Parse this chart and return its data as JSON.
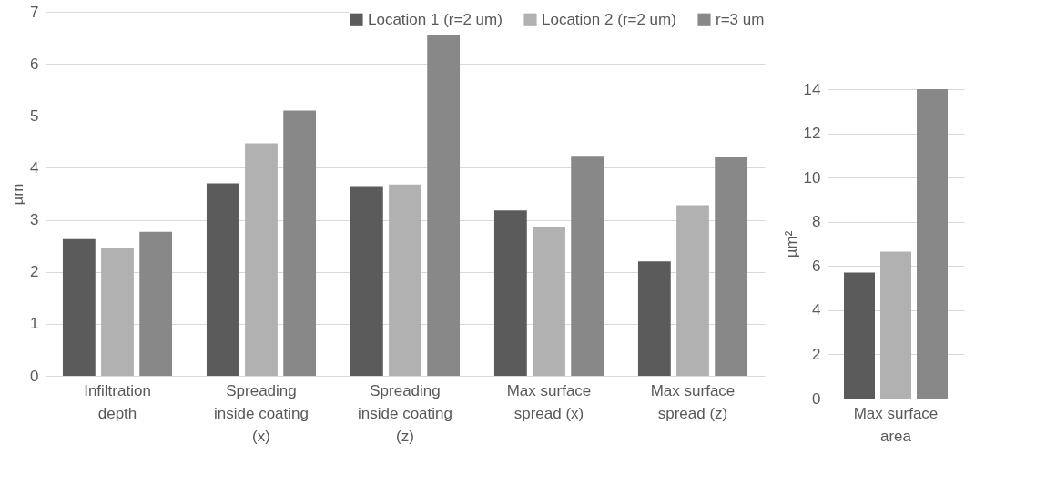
{
  "chart_data": [
    {
      "type": "bar",
      "ylabel": "µm",
      "categories": [
        "Infiltration depth",
        "Spreading inside coating (x)",
        "Spreading inside coating (z)",
        "Max surface spread (x)",
        "Max surface spread (z)"
      ],
      "series": [
        {
          "name": "Location 1 (r=2 um)",
          "color": "#5b5b5b",
          "values": [
            2.63,
            3.7,
            3.65,
            3.18,
            2.2
          ]
        },
        {
          "name": "Location 2 (r=2 um)",
          "color": "#b1b1b1",
          "values": [
            2.45,
            4.47,
            3.68,
            2.86,
            3.28
          ]
        },
        {
          "name": "r=3 um",
          "color": "#888888",
          "values": [
            2.77,
            5.1,
            6.55,
            4.23,
            4.2
          ]
        }
      ],
      "ylim": [
        0,
        7
      ],
      "yticks": [
        0,
        1,
        2,
        3,
        4,
        5,
        6,
        7
      ],
      "grid": "y",
      "legend": "top right"
    },
    {
      "type": "bar",
      "ylabel": "µm²",
      "categories": [
        "Max surface area"
      ],
      "series": [
        {
          "color": "#5b5b5b",
          "values": [
            5.7
          ]
        },
        {
          "color": "#b1b1b1",
          "values": [
            6.65
          ]
        },
        {
          "color": "#888888",
          "values": [
            14
          ]
        }
      ],
      "ylim": [
        0,
        14
      ],
      "yticks": [
        0,
        2,
        4,
        6,
        8,
        10,
        12,
        14
      ],
      "grid": "y"
    }
  ]
}
